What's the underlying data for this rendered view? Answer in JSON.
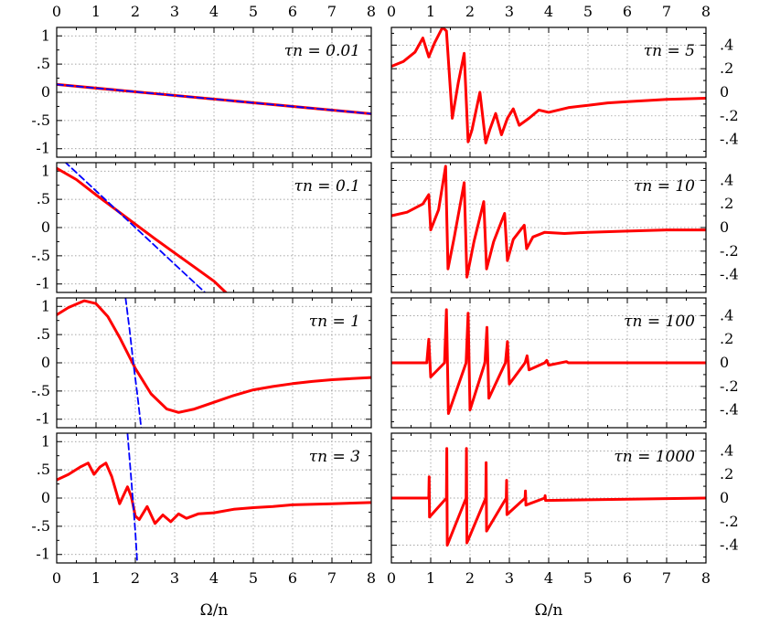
{
  "figure": {
    "xlabel": "Ω/n"
  },
  "chart_data": [
    {
      "type": "line",
      "panel": "left-1",
      "annotation": "τn = 0.01",
      "xlim": [
        0,
        8
      ],
      "ylim": [
        -1.15,
        1.15
      ],
      "xticks": [
        0,
        1,
        2,
        3,
        4,
        5,
        6,
        7,
        8
      ],
      "yticks": [
        -1,
        -0.5,
        0,
        0.5,
        1
      ],
      "series": [
        {
          "style": "solid",
          "color": "#ff0000",
          "x": [
            0,
            8
          ],
          "y": [
            0.14,
            -0.38
          ]
        },
        {
          "style": "dashed",
          "color": "#0000ff",
          "x": [
            0,
            8
          ],
          "y": [
            0.14,
            -0.38
          ]
        }
      ]
    },
    {
      "type": "line",
      "panel": "left-2",
      "annotation": "τn = 0.1",
      "xlim": [
        0,
        8
      ],
      "ylim": [
        -1.15,
        1.15
      ],
      "xticks": [
        0,
        1,
        2,
        3,
        4,
        5,
        6,
        7,
        8
      ],
      "yticks": [
        -1,
        -0.5,
        0,
        0.5,
        1
      ],
      "series": [
        {
          "style": "solid",
          "color": "#ff0000",
          "x": [
            0,
            0.5,
            1,
            1.5,
            2,
            2.5,
            3,
            3.5,
            4,
            4.3
          ],
          "y": [
            1.05,
            0.85,
            0.58,
            0.32,
            0.06,
            -0.2,
            -0.45,
            -0.7,
            -0.95,
            -1.15
          ]
        },
        {
          "style": "dashed",
          "color": "#0000ff",
          "x": [
            0.2,
            3.8
          ],
          "y": [
            1.17,
            -1.17
          ]
        }
      ]
    },
    {
      "type": "line",
      "panel": "left-3",
      "annotation": "τn = 1",
      "xlim": [
        0,
        8
      ],
      "ylim": [
        -1.15,
        1.15
      ],
      "xticks": [
        0,
        1,
        2,
        3,
        4,
        5,
        6,
        7,
        8
      ],
      "yticks": [
        -1,
        -0.5,
        0,
        0.5,
        1
      ],
      "series": [
        {
          "style": "solid",
          "color": "#ff0000",
          "x": [
            0,
            0.3,
            0.7,
            1.0,
            1.3,
            1.6,
            2.0,
            2.4,
            2.8,
            3.1,
            3.5,
            4,
            4.5,
            5,
            5.5,
            6,
            6.5,
            7,
            7.5,
            8
          ],
          "y": [
            0.85,
            0.98,
            1.1,
            1.05,
            0.82,
            0.45,
            -0.1,
            -0.55,
            -0.82,
            -0.88,
            -0.82,
            -0.7,
            -0.58,
            -0.48,
            -0.42,
            -0.37,
            -0.33,
            -0.3,
            -0.28,
            -0.26
          ]
        },
        {
          "style": "dashed",
          "color": "#0000ff",
          "x": [
            1.75,
            1.85,
            1.95,
            2.05,
            2.15
          ],
          "y": [
            1.15,
            0.6,
            0.0,
            -0.55,
            -1.15
          ]
        }
      ]
    },
    {
      "type": "line",
      "panel": "left-4",
      "annotation": "τn = 3",
      "xlim": [
        0,
        8
      ],
      "ylim": [
        -1.15,
        1.15
      ],
      "xticks": [
        0,
        1,
        2,
        3,
        4,
        5,
        6,
        7,
        8
      ],
      "yticks": [
        -1,
        -0.5,
        0,
        0.5,
        1
      ],
      "series": [
        {
          "style": "solid",
          "color": "#ff0000",
          "x": [
            0,
            0.3,
            0.6,
            0.8,
            0.95,
            1.1,
            1.25,
            1.4,
            1.6,
            1.8,
            1.9,
            2.0,
            2.1,
            2.3,
            2.5,
            2.7,
            2.9,
            3.1,
            3.3,
            3.6,
            4,
            4.5,
            5,
            5.5,
            6,
            7,
            8
          ],
          "y": [
            0.32,
            0.42,
            0.55,
            0.62,
            0.42,
            0.55,
            0.62,
            0.38,
            -0.1,
            0.2,
            0.02,
            -0.32,
            -0.38,
            -0.15,
            -0.45,
            -0.3,
            -0.42,
            -0.28,
            -0.36,
            -0.28,
            -0.26,
            -0.2,
            -0.17,
            -0.15,
            -0.12,
            -0.1,
            -0.08
          ]
        },
        {
          "style": "dashed",
          "color": "#0000ff",
          "x": [
            1.8,
            1.9,
            2.0,
            2.05
          ],
          "y": [
            1.15,
            0.3,
            -0.6,
            -1.15
          ]
        }
      ]
    },
    {
      "type": "line",
      "panel": "right-1",
      "annotation": "τn = 5",
      "xlim": [
        0,
        8
      ],
      "ylim": [
        -0.55,
        0.55
      ],
      "xticks": [
        0,
        1,
        2,
        3,
        4,
        5,
        6,
        7,
        8
      ],
      "yticks": [
        -0.4,
        -0.2,
        0,
        0.2,
        0.4
      ],
      "series": [
        {
          "style": "solid",
          "color": "#ff0000",
          "x": [
            0,
            0.3,
            0.6,
            0.8,
            0.95,
            1.1,
            1.3,
            1.4,
            1.55,
            1.7,
            1.85,
            1.95,
            2.05,
            2.25,
            2.4,
            2.5,
            2.65,
            2.8,
            2.95,
            3.1,
            3.25,
            3.5,
            3.75,
            4,
            4.5,
            5,
            5.5,
            6,
            7,
            8
          ],
          "y": [
            0.22,
            0.26,
            0.34,
            0.46,
            0.3,
            0.42,
            0.55,
            0.52,
            -0.22,
            0.08,
            0.33,
            -0.42,
            -0.32,
            0.0,
            -0.43,
            -0.32,
            -0.18,
            -0.36,
            -0.22,
            -0.14,
            -0.28,
            -0.22,
            -0.15,
            -0.17,
            -0.13,
            -0.11,
            -0.09,
            -0.08,
            -0.06,
            -0.05
          ]
        }
      ]
    },
    {
      "type": "line",
      "panel": "right-2",
      "annotation": "τn = 10",
      "xlim": [
        0,
        8
      ],
      "ylim": [
        -0.55,
        0.55
      ],
      "xticks": [
        0,
        1,
        2,
        3,
        4,
        5,
        6,
        7,
        8
      ],
      "yticks": [
        -0.4,
        -0.2,
        0,
        0.2,
        0.4
      ],
      "series": [
        {
          "style": "solid",
          "color": "#ff0000",
          "x": [
            0,
            0.4,
            0.8,
            0.95,
            1.0,
            1.2,
            1.38,
            1.44,
            1.6,
            1.85,
            1.92,
            2.1,
            2.35,
            2.42,
            2.6,
            2.88,
            2.95,
            3.1,
            3.38,
            3.44,
            3.6,
            3.9,
            4.4,
            5,
            6,
            7,
            8
          ],
          "y": [
            0.1,
            0.13,
            0.2,
            0.28,
            -0.02,
            0.15,
            0.52,
            -0.35,
            -0.08,
            0.38,
            -0.42,
            -0.12,
            0.22,
            -0.35,
            -0.12,
            0.12,
            -0.28,
            -0.1,
            0.02,
            -0.18,
            -0.08,
            -0.04,
            -0.05,
            -0.04,
            -0.03,
            -0.02,
            -0.02
          ]
        }
      ]
    },
    {
      "type": "line",
      "panel": "right-3",
      "annotation": "τn = 100",
      "xlim": [
        0,
        8
      ],
      "ylim": [
        -0.55,
        0.55
      ],
      "xticks": [
        0,
        1,
        2,
        3,
        4,
        5,
        6,
        7,
        8
      ],
      "yticks": [
        -0.4,
        -0.2,
        0,
        0.2,
        0.4
      ],
      "series": [
        {
          "style": "solid",
          "color": "#ff0000",
          "x": [
            0,
            0.9,
            0.95,
            1.0,
            1.35,
            1.4,
            1.45,
            1.9,
            1.95,
            2.0,
            2.38,
            2.43,
            2.48,
            2.9,
            2.95,
            3.0,
            3.4,
            3.45,
            3.5,
            3.9,
            3.95,
            4.0,
            4.45,
            4.5,
            8
          ],
          "y": [
            0.0,
            0.0,
            0.2,
            -0.12,
            0.0,
            0.45,
            -0.43,
            0.0,
            0.42,
            -0.4,
            0.0,
            0.3,
            -0.3,
            0.0,
            0.18,
            -0.18,
            0.0,
            0.06,
            -0.06,
            0.0,
            0.02,
            -0.02,
            0.01,
            0.0,
            0.0
          ]
        }
      ]
    },
    {
      "type": "line",
      "panel": "right-4",
      "annotation": "τn = 1000",
      "xlim": [
        0,
        8
      ],
      "ylim": [
        -0.55,
        0.55
      ],
      "xticks": [
        0,
        1,
        2,
        3,
        4,
        5,
        6,
        7,
        8
      ],
      "yticks": [
        -0.4,
        -0.2,
        0,
        0.2,
        0.4
      ],
      "series": [
        {
          "style": "solid",
          "color": "#ff0000",
          "x": [
            0,
            0.95,
            0.96,
            0.97,
            1.4,
            1.41,
            1.42,
            1.9,
            1.91,
            1.92,
            2.4,
            2.41,
            2.42,
            2.92,
            2.93,
            2.94,
            3.4,
            3.41,
            3.42,
            3.9,
            3.91,
            3.92,
            8
          ],
          "y": [
            0.0,
            0.0,
            0.18,
            -0.16,
            0.0,
            0.42,
            -0.4,
            0.0,
            0.42,
            -0.38,
            0.0,
            0.3,
            -0.28,
            0.0,
            0.15,
            -0.14,
            0.0,
            0.06,
            -0.06,
            0.0,
            0.02,
            -0.02,
            0.0
          ]
        }
      ]
    }
  ]
}
